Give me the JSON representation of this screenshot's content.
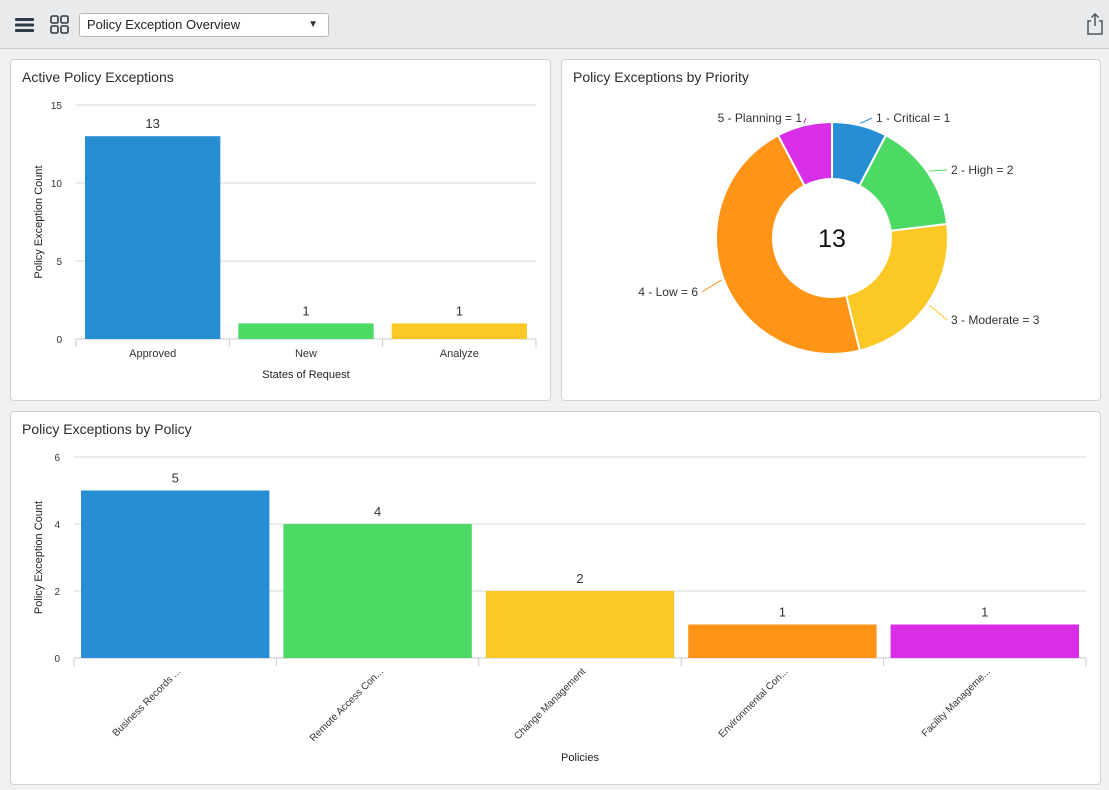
{
  "toolbar": {
    "dashboard_select": "Policy Exception Overview",
    "menu_icon": "hamburger-menu-icon",
    "grid_icon": "dashboard-grid-icon",
    "share_icon": "share-icon"
  },
  "chart_data": [
    {
      "type": "bar",
      "title": "Active Policy Exceptions",
      "xlabel": "States of Request",
      "ylabel": "Policy Exception Count",
      "categories": [
        "Approved",
        "New",
        "Analyze"
      ],
      "values": [
        13,
        1,
        1
      ],
      "colors": [
        "#278ed4",
        "#4cd964",
        "#fcc825"
      ],
      "ylim": [
        0,
        15
      ],
      "yticks": [
        0,
        5,
        10,
        15
      ],
      "grid": true
    },
    {
      "type": "pie",
      "title": "Policy Exceptions by Priority",
      "center_label": "13",
      "labels": [
        "1 - Critical = 1",
        "2 - High = 2",
        "3 - Moderate = 3",
        "4 - Low = 6",
        "5 - Planning = 1"
      ],
      "values": [
        1,
        2,
        3,
        6,
        1
      ],
      "colors": [
        "#278ed4",
        "#4cd964",
        "#fcc825",
        "#ff9417",
        "#d82ee8"
      ]
    },
    {
      "type": "bar",
      "title": "Policy Exceptions by Policy",
      "xlabel": "Policies",
      "ylabel": "Policy Exception Count",
      "categories": [
        "Business Records ...",
        "Remote Access Con...",
        "Change Management",
        "Environmental Con...",
        "Facility Manageme..."
      ],
      "values": [
        5,
        4,
        2,
        1,
        1
      ],
      "colors": [
        "#278ed4",
        "#4cd964",
        "#fcc825",
        "#ff9417",
        "#d82ee8"
      ],
      "ylim": [
        0,
        6
      ],
      "yticks": [
        0,
        2,
        4,
        6
      ],
      "grid": true
    }
  ]
}
